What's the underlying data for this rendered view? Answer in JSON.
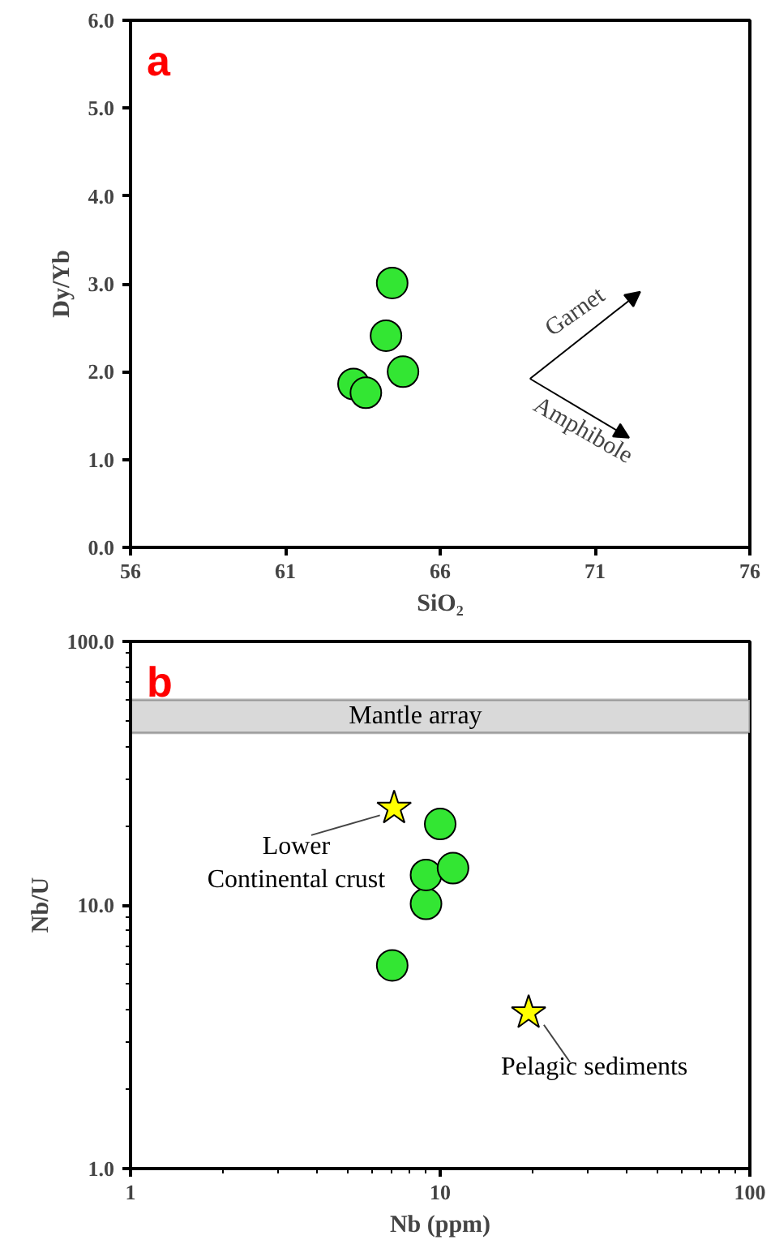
{
  "chart_data": [
    {
      "type": "scatter",
      "xlabel": "SiO₂",
      "ylabel": "Dy/Yb",
      "xlim": [
        56,
        76
      ],
      "ylim": [
        0,
        6
      ],
      "xticks": [
        56,
        61,
        66,
        71,
        76
      ],
      "yticks": [
        {
          "value": 0,
          "label": "0.0"
        },
        {
          "value": 1,
          "label": "1.0"
        },
        {
          "value": 2,
          "label": "2.0"
        },
        {
          "value": 3,
          "label": "3.0"
        },
        {
          "value": 4,
          "label": "4.0"
        },
        {
          "value": 5,
          "label": "5.0"
        },
        {
          "value": 6,
          "label": "6.0"
        }
      ],
      "marker": "circle",
      "grid": false,
      "series": [
        {
          "color": "#33e633",
          "x": [
            63.2,
            63.6,
            64.25,
            64.45,
            64.8
          ],
          "values": [
            1.86,
            1.76,
            2.41,
            3.01,
            2.0
          ]
        }
      ],
      "annotations": [
        "a",
        "Garnet",
        "Amphibole"
      ]
    },
    {
      "type": "scatter",
      "xlabel": "Nb (ppm)",
      "ylabel": "Nb/U",
      "log": "xy",
      "xlim": [
        1,
        100
      ],
      "ylim": [
        1,
        100
      ],
      "xticks": [
        1,
        10,
        100
      ],
      "yticks": [
        {
          "value": 1,
          "label": "1.0"
        },
        {
          "value": 10,
          "label": "10.0"
        },
        {
          "value": 100,
          "label": "100.0"
        }
      ],
      "marker": "circle",
      "grid": false,
      "series": [
        {
          "color": "#33e633",
          "x": [
            7.0,
            9.0,
            9.0,
            11.0,
            10.0
          ],
          "values": [
            5.9,
            10.1,
            13.0,
            13.8,
            20.3
          ]
        },
        {
          "name": "Lower\nContinental crust",
          "color": "#ffff00",
          "marker": "star",
          "x": [
            7.1
          ],
          "values": [
            23.3
          ]
        },
        {
          "name": "Pelagic sediments",
          "color": "#ffff00",
          "marker": "star",
          "x": [
            19.3
          ],
          "values": [
            3.9
          ]
        }
      ],
      "bands": [
        {
          "axis": "y",
          "from": 45,
          "to": 60,
          "label": "Mantle array",
          "color": "#d9d9d9"
        }
      ],
      "annotations": [
        "b"
      ]
    }
  ]
}
